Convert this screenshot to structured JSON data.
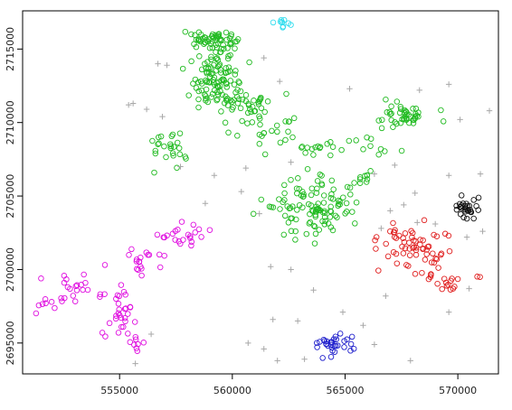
{
  "chart_data": {
    "type": "scatter",
    "title": "",
    "xlabel": "",
    "ylabel": "",
    "xlim": [
      550700,
      571800
    ],
    "ylim": [
      2692900,
      2717600
    ],
    "grid": false,
    "legend": "none",
    "x_ticks": [
      555000,
      560000,
      565000,
      570000
    ],
    "y_ticks": [
      2695000,
      2700000,
      2705000,
      2710000,
      2715000
    ],
    "series": [
      {
        "marker": "circle-open",
        "color": "#22bb22",
        "clusters": [
          {
            "cx": 559000,
            "cy": 2715500,
            "sx": 700,
            "sy": 500,
            "n": 60
          },
          {
            "cx": 559300,
            "cy": 2712800,
            "sx": 700,
            "sy": 1200,
            "n": 110
          },
          {
            "cx": 561000,
            "cy": 2711200,
            "sx": 900,
            "sy": 500,
            "n": 30
          },
          {
            "cx": 557300,
            "cy": 2708200,
            "sx": 700,
            "sy": 900,
            "n": 25
          },
          {
            "cx": 561800,
            "cy": 2709500,
            "sx": 900,
            "sy": 600,
            "n": 20
          },
          {
            "cx": 563800,
            "cy": 2708400,
            "sx": 1000,
            "sy": 500,
            "n": 18
          },
          {
            "cx": 563600,
            "cy": 2704200,
            "sx": 1100,
            "sy": 1200,
            "n": 110
          },
          {
            "cx": 565900,
            "cy": 2706100,
            "sx": 400,
            "sy": 300,
            "n": 10
          },
          {
            "cx": 567700,
            "cy": 2710300,
            "sx": 700,
            "sy": 500,
            "n": 45
          },
          {
            "cx": 566700,
            "cy": 2708400,
            "sx": 500,
            "sy": 400,
            "n": 8
          }
        ]
      },
      {
        "marker": "circle-open",
        "color": "#e010e0",
        "clusters": [
          {
            "cx": 558000,
            "cy": 2702400,
            "sx": 700,
            "sy": 600,
            "n": 22
          },
          {
            "cx": 555800,
            "cy": 2700500,
            "sx": 600,
            "sy": 700,
            "n": 18
          },
          {
            "cx": 553200,
            "cy": 2698700,
            "sx": 1000,
            "sy": 500,
            "n": 22
          },
          {
            "cx": 555100,
            "cy": 2697200,
            "sx": 400,
            "sy": 1200,
            "n": 28
          },
          {
            "cx": 555700,
            "cy": 2695100,
            "sx": 300,
            "sy": 400,
            "n": 8
          },
          {
            "cx": 551700,
            "cy": 2697500,
            "sx": 500,
            "sy": 300,
            "n": 8
          }
        ]
      },
      {
        "marker": "circle-open",
        "color": "#e02020",
        "clusters": [
          {
            "cx": 568200,
            "cy": 2701400,
            "sx": 1200,
            "sy": 900,
            "n": 50
          },
          {
            "cx": 569200,
            "cy": 2699400,
            "sx": 900,
            "sy": 600,
            "n": 22
          },
          {
            "cx": 567200,
            "cy": 2702400,
            "sx": 800,
            "sy": 400,
            "n": 10
          }
        ]
      },
      {
        "marker": "circle-open",
        "color": "#2020cc",
        "clusters": [
          {
            "cx": 564600,
            "cy": 2694900,
            "sx": 600,
            "sy": 500,
            "n": 32
          }
        ]
      },
      {
        "marker": "circle-open",
        "color": "#111111",
        "clusters": [
          {
            "cx": 570500,
            "cy": 2704200,
            "sx": 450,
            "sy": 450,
            "n": 30
          }
        ]
      },
      {
        "marker": "circle-open",
        "color": "#33ddee",
        "clusters": [
          {
            "cx": 562200,
            "cy": 2716800,
            "sx": 300,
            "sy": 200,
            "n": 10
          }
        ]
      },
      {
        "marker": "cross",
        "color": "#a8a8a8",
        "points": [
          [
            556700,
            2714000
          ],
          [
            555400,
            2711200
          ],
          [
            556200,
            2710900
          ],
          [
            556900,
            2710400
          ],
          [
            555600,
            2711300
          ],
          [
            561400,
            2714400
          ],
          [
            562100,
            2712800
          ],
          [
            565200,
            2712300
          ],
          [
            569600,
            2712600
          ],
          [
            571400,
            2710800
          ],
          [
            570100,
            2710200
          ],
          [
            557700,
            2707000
          ],
          [
            559200,
            2706400
          ],
          [
            560600,
            2706900
          ],
          [
            562600,
            2707300
          ],
          [
            566300,
            2706500
          ],
          [
            567200,
            2707100
          ],
          [
            568100,
            2705200
          ],
          [
            569600,
            2706400
          ],
          [
            571000,
            2706500
          ],
          [
            560400,
            2705300
          ],
          [
            561200,
            2703800
          ],
          [
            567000,
            2704000
          ],
          [
            567600,
            2704400
          ],
          [
            568200,
            2703200
          ],
          [
            566600,
            2702800
          ],
          [
            569000,
            2703100
          ],
          [
            570400,
            2702200
          ],
          [
            571100,
            2702600
          ],
          [
            561700,
            2700200
          ],
          [
            562600,
            2700000
          ],
          [
            563600,
            2698600
          ],
          [
            566800,
            2698200
          ],
          [
            570500,
            2698700
          ],
          [
            569600,
            2697100
          ],
          [
            561800,
            2696600
          ],
          [
            562900,
            2696500
          ],
          [
            564900,
            2697100
          ],
          [
            565800,
            2696200
          ],
          [
            566300,
            2694900
          ],
          [
            560700,
            2695000
          ],
          [
            561400,
            2694600
          ],
          [
            562000,
            2693800
          ],
          [
            563200,
            2693900
          ],
          [
            567900,
            2693800
          ],
          [
            561200,
            2692900
          ],
          [
            558800,
            2704500
          ],
          [
            556400,
            2695600
          ],
          [
            555700,
            2693600
          ],
          [
            565400,
            2692900
          ],
          [
            557100,
            2713900
          ],
          [
            568300,
            2712200
          ]
        ]
      }
    ]
  }
}
